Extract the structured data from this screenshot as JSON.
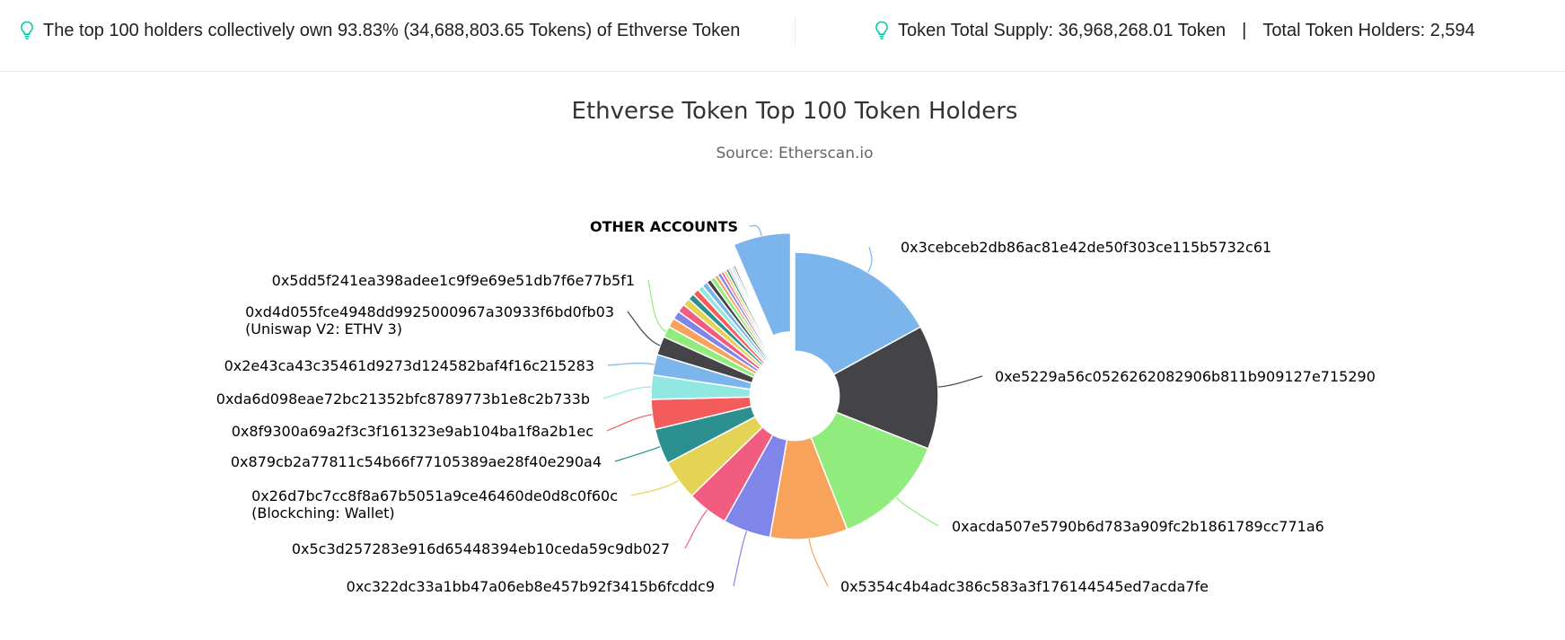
{
  "info": {
    "top_holders_text": "The top 100 holders collectively own 93.83% (34,688,803.65 Tokens) of Ethverse Token",
    "total_supply_text": "Token Total Supply: 36,968,268.01 Token",
    "separator": "|",
    "total_holders_text": "Total Token Holders: 2,594",
    "icon": "lightbulb-icon",
    "icon_color": "#00c9a7"
  },
  "chart_data": {
    "type": "pie",
    "title": "Ethverse Token Top 100 Token Holders",
    "subtitle": "Source: Etherscan.io",
    "inner_radius_ratio": 0.31,
    "slices": [
      {
        "label": "0x3cebceb2db86ac81e42de50f303ce115b5732c61",
        "value": 16.2,
        "color": "#7cb5ec"
      },
      {
        "label": "0xe5229a56c0526262082906b811b909127e715290",
        "value": 13.3,
        "color": "#434348"
      },
      {
        "label": "0xacda507e5790b6d783a909fc2b1861789cc771a6",
        "value": 12.4,
        "color": "#90ed7d"
      },
      {
        "label": "0x5354c4b4adc386c583a3f176144545ed7acda7fe",
        "value": 8.3,
        "color": "#f7a35c"
      },
      {
        "label": "0xc322dc33a1bb47a06eb8e457b92f3415b6fcddc9",
        "value": 5.1,
        "color": "#8085e9"
      },
      {
        "label": "0x5c3d257283e916d65448394eb10ceda59c9db027",
        "value": 4.4,
        "color": "#f15c80"
      },
      {
        "label": "0x26d7bc7cc8f8a67b5051a9ce46460de0d8c0f60c",
        "label2": "(Blockching: Wallet)",
        "value": 4.3,
        "color": "#e4d354"
      },
      {
        "label": "0x879cb2a77811c54b66f77105389ae28f40e290a4",
        "value": 3.8,
        "color": "#2b908f"
      },
      {
        "label": "0x8f9300a69a2f3c3f161323e9ab104ba1f8a2b1ec",
        "value": 3.2,
        "color": "#f45b5b"
      },
      {
        "label": "0xda6d098eae72bc21352bfc8789773b1e8c2b733b",
        "value": 2.6,
        "color": "#91e8e1"
      },
      {
        "label": "0x2e43ca43c35461d9273d124582baf4f16c215283",
        "value": 2.2,
        "color": "#7cb5ec"
      },
      {
        "label": "0xd4d055fce4948dd9925000967a30933f6bd0fb03",
        "label2": "(Uniswap V2: ETHV 3)",
        "value": 2.0,
        "color": "#434348"
      },
      {
        "label": "0x5dd5f241ea398adee1c9f9e69e51db7f6e77b5f1",
        "value": 1.2,
        "color": "#90ed7d"
      },
      {
        "label": "",
        "value": 1.0,
        "color": "#f7a35c"
      },
      {
        "label": "",
        "value": 0.9,
        "color": "#8085e9"
      },
      {
        "label": "",
        "value": 0.9,
        "color": "#f15c80"
      },
      {
        "label": "",
        "value": 0.8,
        "color": "#e4d354"
      },
      {
        "label": "",
        "value": 0.7,
        "color": "#2b908f"
      },
      {
        "label": "",
        "value": 0.7,
        "color": "#f45b5b"
      },
      {
        "label": "",
        "value": 0.6,
        "color": "#91e8e1"
      },
      {
        "label": "",
        "value": 0.6,
        "color": "#7cb5ec"
      },
      {
        "label": "",
        "value": 0.5,
        "color": "#434348"
      },
      {
        "label": "",
        "value": 0.5,
        "color": "#90ed7d"
      },
      {
        "label": "",
        "value": 0.4,
        "color": "#f7a35c"
      },
      {
        "label": "",
        "value": 0.4,
        "color": "#8085e9"
      },
      {
        "label": "",
        "value": 0.3,
        "color": "#f15c80"
      },
      {
        "label": "",
        "value": 0.3,
        "color": "#e4d354"
      },
      {
        "label": "",
        "value": 0.3,
        "color": "#2b908f"
      },
      {
        "label": "",
        "value": 0.2,
        "color": "#f45b5b"
      },
      {
        "label": "",
        "value": 0.2,
        "color": "#91e8e1"
      },
      {
        "label": "",
        "value": 0.2,
        "color": "#7cb5ec"
      },
      {
        "label": "",
        "value": 0.2,
        "color": "#434348"
      },
      {
        "label": "",
        "value": 0.1,
        "color": "#90ed7d"
      },
      {
        "label": "",
        "value": 0.1,
        "color": "#f7a35c"
      },
      {
        "label": "",
        "value": 0.1,
        "color": "#8085e9"
      },
      {
        "label": "OTHER ACCOUNTS",
        "value": 6.17,
        "color": "#7cb5ec",
        "sliced": true
      }
    ]
  }
}
